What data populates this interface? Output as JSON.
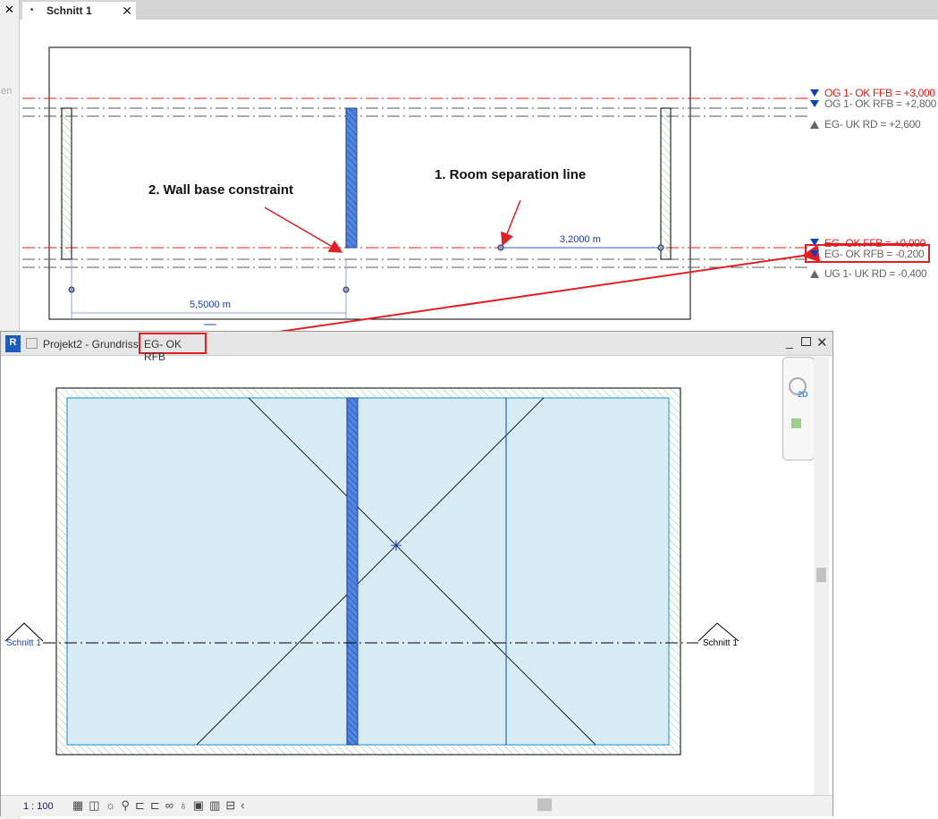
{
  "tab": {
    "title": "Schnitt 1",
    "close": "✕"
  },
  "left_panel": {
    "close": "✕",
    "partial_label": "en"
  },
  "section": {
    "levels": [
      {
        "label": "OG 1- OK FFB  =  +3,000",
        "color": "#e01b1b",
        "marker": "down-triangle-blue"
      },
      {
        "label": "OG 1- OK RFB  =  +2,800",
        "color": "#666666",
        "marker": "down-triangle-blue"
      },
      {
        "label": "EG- UK RD  =  +2,600",
        "color": "#666666",
        "marker": "up-triangle-gray"
      },
      {
        "label": "EG- OK FFB  =  +0,000",
        "color": "#e01b1b",
        "marker": "down-triangle-blue"
      },
      {
        "label": "EG- OK RFB  =  -0,200",
        "color": "#666666",
        "marker": "down-triangle-blue"
      },
      {
        "label": "UG 1- UK RD  =  -0,400",
        "color": "#666666",
        "marker": "up-triangle-gray"
      }
    ],
    "dim_room_line": "3,2000 m",
    "dim_wall": "5,5000 m",
    "annotation_1": "1. Room separation line",
    "annotation_2": "2. Wall base constraint"
  },
  "plan_window": {
    "app_icon": "R",
    "title": "Projekt2 - Grundriss",
    "level": "EG- OK RFB",
    "section_tag_left": "Schnitt 1",
    "section_tag_right": "Schnitt 1",
    "scale": "1 : 100",
    "navbar_2d": "2D"
  },
  "colors": {
    "highlight": "#e31e24",
    "wall_blue": "#4f86e0",
    "room_fill": "#d7ecf5"
  }
}
